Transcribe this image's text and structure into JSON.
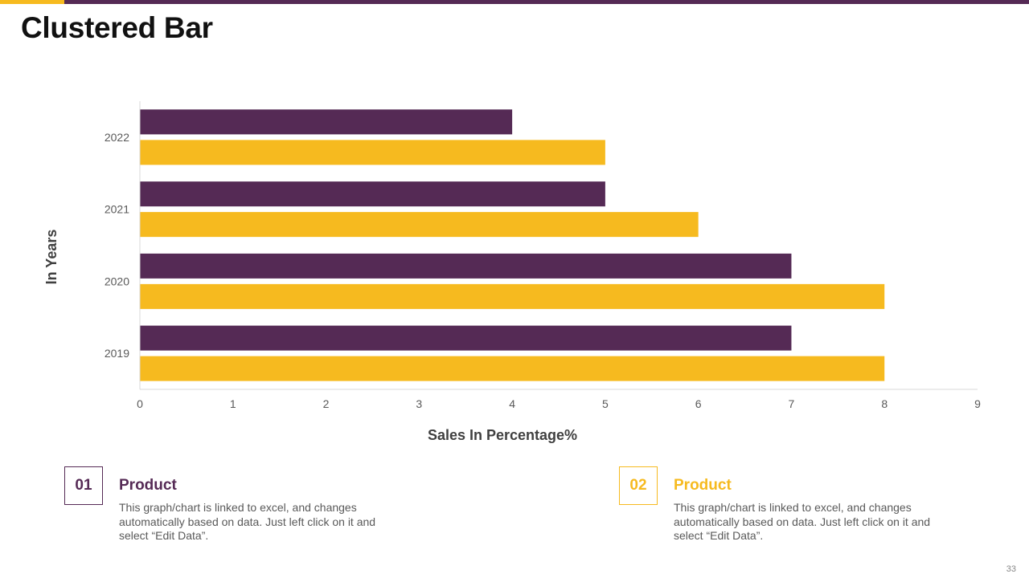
{
  "slide": {
    "title": "Clustered Bar",
    "page_number": "33"
  },
  "colors": {
    "purple": "#552a55",
    "yellow": "#f6ba1f"
  },
  "chart_data": {
    "type": "bar",
    "orientation": "horizontal",
    "categories": [
      "2019",
      "2020",
      "2021",
      "2022"
    ],
    "series": [
      {
        "name": "Product 01",
        "color": "#552a55",
        "values": [
          7,
          7,
          5,
          4
        ]
      },
      {
        "name": "Product 02",
        "color": "#f6ba1f",
        "values": [
          8,
          8,
          6,
          5
        ]
      }
    ],
    "xlim": [
      0,
      9
    ],
    "xticks": [
      "0",
      "1",
      "2",
      "3",
      "4",
      "5",
      "6",
      "7",
      "8",
      "9"
    ],
    "xlabel": "Sales In Percentage%",
    "ylabel": "In Years",
    "grid": false
  },
  "cards": [
    {
      "number": "01",
      "title": "Product",
      "text": "This graph/chart is linked to excel, and changes automatically based on data. Just left click on it and select “Edit Data”."
    },
    {
      "number": "02",
      "title": "Product",
      "text": "This graph/chart is linked to excel, and changes automatically based on data. Just left click on it and select “Edit Data”."
    }
  ]
}
